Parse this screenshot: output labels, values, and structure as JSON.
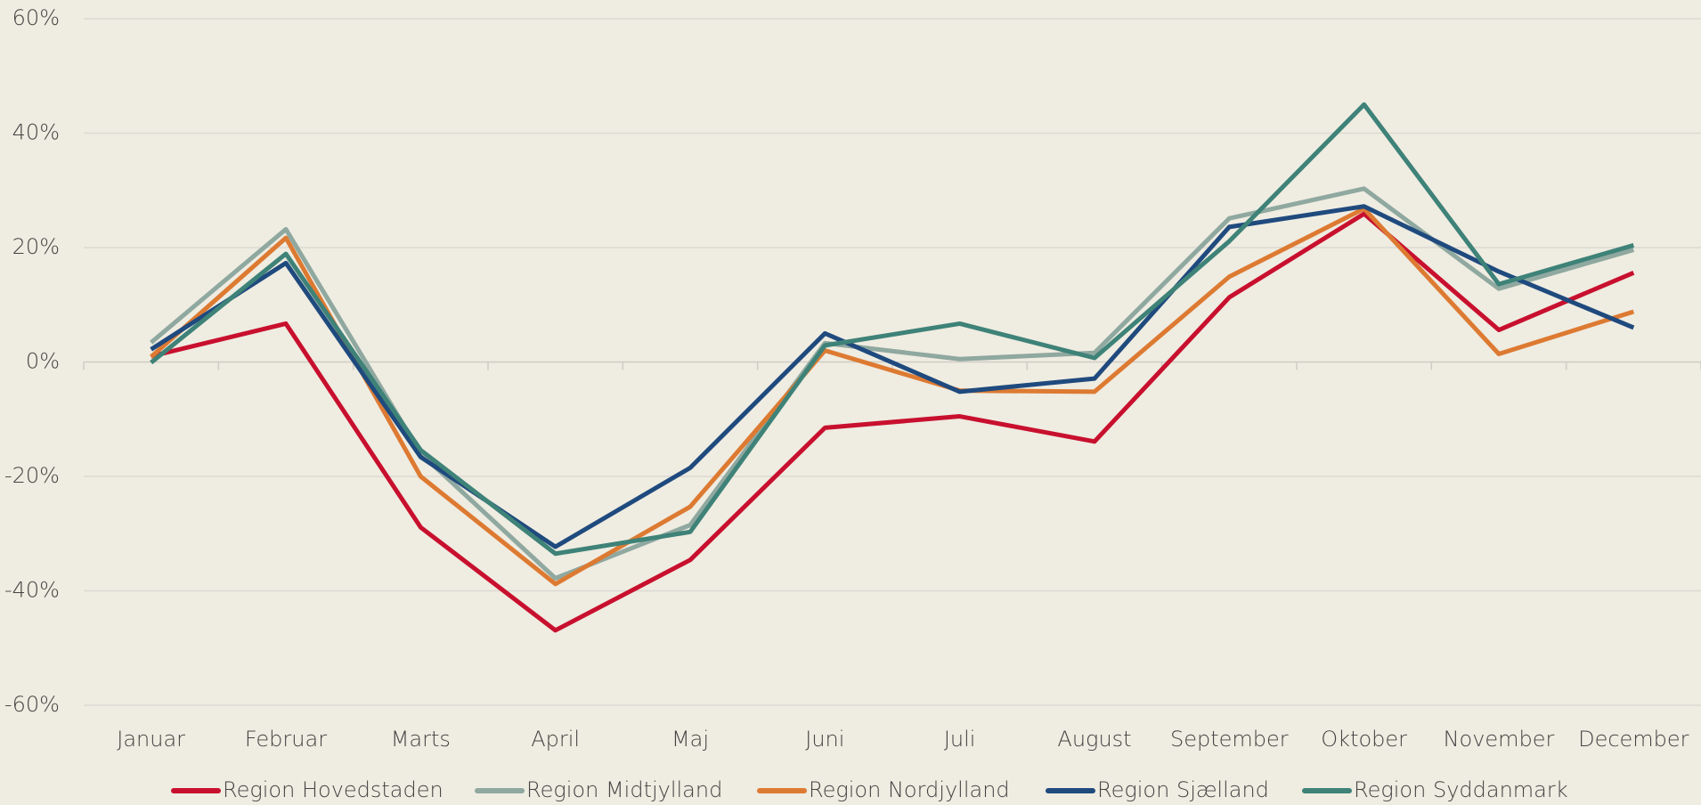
{
  "chart_data": {
    "type": "line",
    "categories": [
      "Januar",
      "Februar",
      "Marts",
      "April",
      "Maj",
      "Juni",
      "Juli",
      "August",
      "September",
      "Oktober",
      "November",
      "December"
    ],
    "series": [
      {
        "name": "Region Hovedstaden",
        "color": "#c8102e",
        "values": [
          1,
          6.7,
          -28.9,
          -46.9,
          -34.6,
          -11.5,
          -9.5,
          -13.9,
          11.3,
          25.9,
          5.6,
          15.6
        ]
      },
      {
        "name": "Region Midtjylland",
        "color": "#8fa8a0",
        "values": [
          3.4,
          23.2,
          -16,
          -37.8,
          -28.5,
          3.3,
          0.5,
          1.6,
          25.1,
          30.3,
          12.8,
          19.6
        ]
      },
      {
        "name": "Region Nordjylland",
        "color": "#dd7a32",
        "values": [
          0.9,
          21.7,
          -20,
          -38.8,
          -25.3,
          2,
          -5,
          -5.2,
          14.9,
          26.8,
          1.4,
          8.8
        ]
      },
      {
        "name": "Region Sjælland",
        "color": "#1f4a7e",
        "values": [
          2.2,
          17.3,
          -16.6,
          -32.3,
          -18.5,
          5,
          -5.2,
          -2.9,
          23.6,
          27.2,
          15.8,
          6
        ]
      },
      {
        "name": "Region Syddanmark",
        "color": "#3e8278",
        "values": [
          -0.1,
          18.9,
          -15.4,
          -33.5,
          -29.7,
          2.9,
          6.7,
          0.7,
          21.1,
          45,
          13.6,
          20.4
        ]
      }
    ],
    "ylim": [
      -60,
      60
    ],
    "yticks": [
      {
        "value": -60,
        "label": "-60%"
      },
      {
        "value": -40,
        "label": "-40%"
      },
      {
        "value": -20,
        "label": "-20%"
      },
      {
        "value": 0,
        "label": "0%"
      },
      {
        "value": 20,
        "label": "20%"
      },
      {
        "value": 40,
        "label": "40%"
      },
      {
        "value": 60,
        "label": "60%"
      }
    ],
    "grid": true,
    "legend": "bottom"
  }
}
